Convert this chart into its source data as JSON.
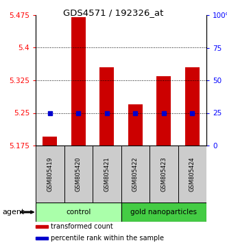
{
  "title": "GDS4571 / 192326_at",
  "categories": [
    "GSM805419",
    "GSM805420",
    "GSM805421",
    "GSM805422",
    "GSM805423",
    "GSM805424"
  ],
  "red_values": [
    5.195,
    5.47,
    5.355,
    5.27,
    5.335,
    5.355
  ],
  "blue_values": [
    25,
    25,
    25,
    25,
    25,
    25
  ],
  "ylim_left": [
    5.175,
    5.475
  ],
  "ylim_right": [
    0,
    100
  ],
  "left_ticks": [
    5.175,
    5.25,
    5.325,
    5.4,
    5.475
  ],
  "right_ticks": [
    0,
    25,
    50,
    75,
    100
  ],
  "right_tick_labels": [
    "0",
    "25",
    "50",
    "75",
    "100%"
  ],
  "groups": [
    {
      "label": "control",
      "indices": [
        0,
        1,
        2
      ],
      "color": "#aaffaa"
    },
    {
      "label": "gold nanoparticles",
      "indices": [
        3,
        4,
        5
      ],
      "color": "#44cc44"
    }
  ],
  "bar_color": "#cc0000",
  "dot_color": "#0000cc",
  "bar_width": 0.5,
  "baseline": 5.175,
  "agent_label": "agent",
  "gray_color": "#cccccc",
  "legend_items": [
    {
      "color": "#cc0000",
      "label": "transformed count"
    },
    {
      "color": "#0000cc",
      "label": "percentile rank within the sample"
    }
  ]
}
